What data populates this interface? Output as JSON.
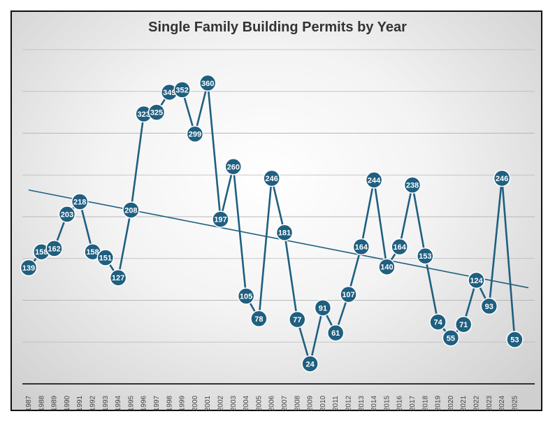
{
  "chart_data": {
    "type": "line",
    "title": "Single Family Building Permits by Year",
    "x": [
      "1987",
      "1988",
      "1989",
      "1990",
      "1991",
      "1992",
      "1993",
      "1994",
      "1995",
      "1996",
      "1997",
      "1998",
      "1999",
      "2000",
      "2001",
      "2002",
      "2003",
      "2004",
      "2005",
      "2006",
      "2007",
      "2008",
      "2009",
      "2010",
      "2011",
      "2012",
      "2013",
      "2014",
      "2015",
      "2016",
      "2017",
      "2018",
      "2019",
      "2020",
      "2021",
      "2022",
      "2023",
      "2024",
      "2025"
    ],
    "values": [
      139,
      158,
      162,
      203,
      218,
      158,
      151,
      127,
      208,
      323,
      325,
      349,
      352,
      299,
      360,
      197,
      260,
      105,
      78,
      246,
      181,
      77,
      24,
      91,
      61,
      107,
      164,
      244,
      140,
      164,
      238,
      153,
      74,
      55,
      71,
      124,
      93,
      246,
      53
    ],
    "trendline": {
      "type": "linear",
      "start": 232,
      "end": 115
    },
    "ylim": [
      0,
      400
    ],
    "gridlines": [
      0,
      50,
      100,
      150,
      200,
      250,
      300,
      350,
      400
    ],
    "y_tick_labels": "none",
    "grid": true,
    "legend": "none",
    "colors": {
      "series": "#1f5f80",
      "trendline": "#1f5f80",
      "grid": "#b8b8b8",
      "axis": "#333333"
    }
  }
}
